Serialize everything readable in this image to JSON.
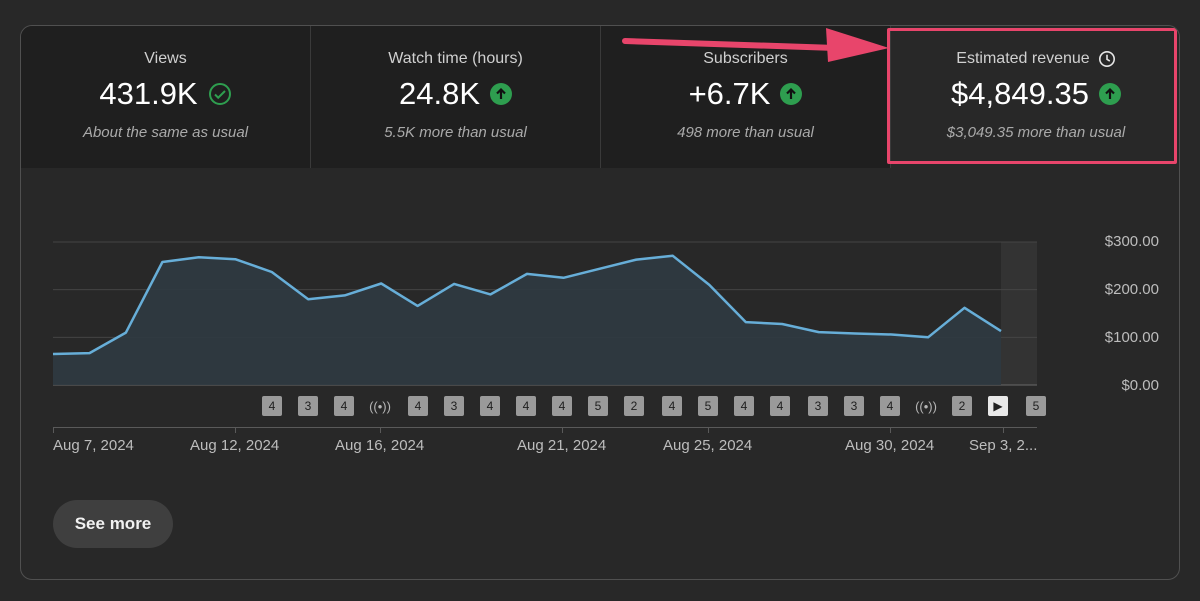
{
  "metrics": [
    {
      "label": "Views",
      "value": "431.9K",
      "note": "About the same as usual",
      "status": "check"
    },
    {
      "label": "Watch time (hours)",
      "value": "24.8K",
      "note": "5.5K more than usual",
      "status": "up"
    },
    {
      "label": "Subscribers",
      "value": "+6.7K",
      "note": "498 more than usual",
      "status": "up"
    },
    {
      "label": "Estimated revenue",
      "value": "$4,849.35",
      "note": "$3,049.35 more than usual",
      "status": "up"
    }
  ],
  "chart_data": {
    "type": "area",
    "title": "Estimated revenue",
    "ylim": [
      0,
      300
    ],
    "y_ticks": [
      "$300.00",
      "$200.00",
      "$100.00",
      "$0.00"
    ],
    "x_labels": [
      "Aug 7, 2024",
      "Aug 12, 2024",
      "Aug 16, 2024",
      "Aug 21, 2024",
      "Aug 25, 2024",
      "Aug 30, 2024",
      "Sep 3, 2..."
    ],
    "series": [
      {
        "name": "Estimated revenue",
        "values": [
          65,
          67,
          110,
          258,
          268,
          264,
          237,
          180,
          188,
          213,
          166,
          212,
          190,
          233,
          225,
          244,
          263,
          271,
          210,
          132,
          128,
          111,
          108,
          106,
          100,
          162,
          113
        ]
      }
    ],
    "color": "#67aed8",
    "fill": "#2f3a41"
  },
  "badges": [
    "4",
    "3",
    "4",
    "((•))",
    "4",
    "3",
    "4",
    "4",
    "4",
    "5",
    "2",
    "4",
    "5",
    "4",
    "4",
    "3",
    "3",
    "4",
    "((•))",
    "2",
    "▶",
    "5"
  ],
  "see_more": "See more",
  "colors": {
    "accent": "#e8456b",
    "up": "#2e9e4f",
    "line": "#67aed8"
  }
}
